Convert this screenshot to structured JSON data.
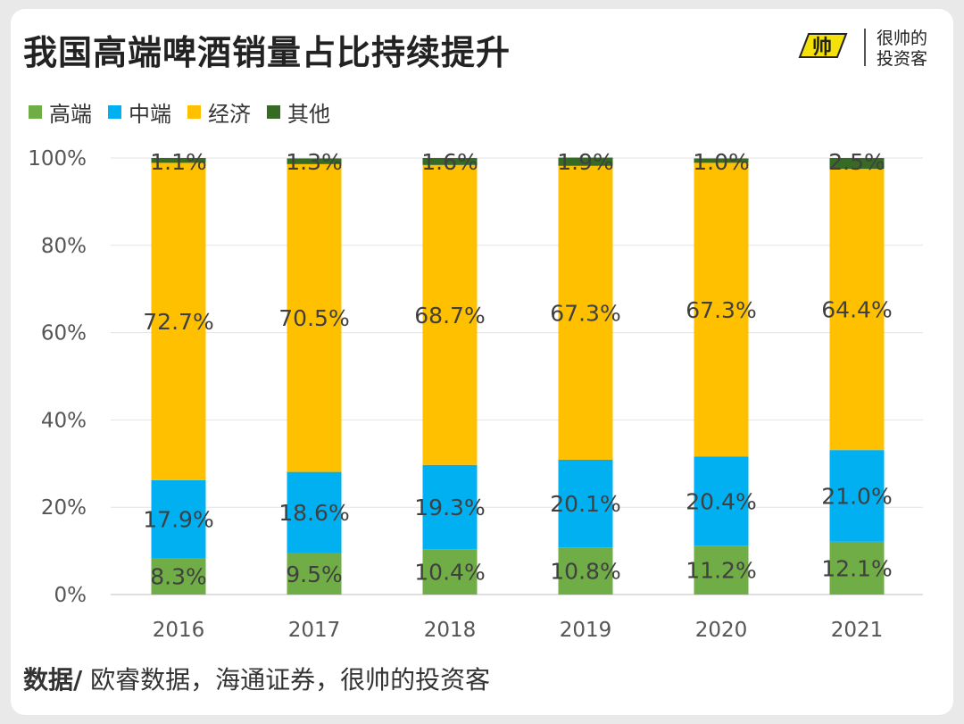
{
  "title": "我国高端啤酒销量占比持续提升",
  "logo": {
    "mark_text": "帅",
    "line1": "很帅的",
    "line2": "投资客"
  },
  "legend": [
    {
      "name": "高端",
      "color": "#70ad47"
    },
    {
      "name": "中端",
      "color": "#00b0f0"
    },
    {
      "name": "经济",
      "color": "#ffc000"
    },
    {
      "name": "其他",
      "color": "#376a25"
    }
  ],
  "source": {
    "label": "数据/",
    "text": " 欧睿数据，海通证券，很帅的投资客"
  },
  "chart_data": {
    "type": "bar",
    "stacked": true,
    "categories": [
      "2016",
      "2017",
      "2018",
      "2019",
      "2020",
      "2021"
    ],
    "series": [
      {
        "name": "高端",
        "color": "#70ad47",
        "values": [
          8.3,
          9.5,
          10.4,
          10.8,
          11.2,
          12.1
        ],
        "labels": [
          "8.3%",
          "9.5%",
          "10.4%",
          "10.8%",
          "11.2%",
          "12.1%"
        ]
      },
      {
        "name": "中端",
        "color": "#00b0f0",
        "values": [
          17.9,
          18.6,
          19.3,
          20.1,
          20.4,
          21.0
        ],
        "labels": [
          "17.9%",
          "18.6%",
          "19.3%",
          "20.1%",
          "20.4%",
          "21.0%"
        ]
      },
      {
        "name": "经济",
        "color": "#ffc000",
        "values": [
          72.7,
          70.5,
          68.7,
          67.3,
          67.3,
          64.4
        ],
        "labels": [
          "72.7%",
          "70.5%",
          "68.7%",
          "67.3%",
          "67.3%",
          "64.4%"
        ]
      },
      {
        "name": "其他",
        "color": "#376a25",
        "values": [
          1.1,
          1.3,
          1.6,
          1.9,
          1.0,
          2.5
        ],
        "labels": [
          "1.1%",
          "1.3%",
          "1.6%",
          "1.9%",
          "1.0%",
          "2.5%"
        ]
      }
    ],
    "ylim": [
      0,
      100
    ],
    "yticks": [
      0,
      20,
      40,
      60,
      80,
      100
    ],
    "ytick_labels": [
      "0%",
      "20%",
      "40%",
      "60%",
      "80%",
      "100%"
    ],
    "grid": true,
    "legend_position": "top-left"
  }
}
